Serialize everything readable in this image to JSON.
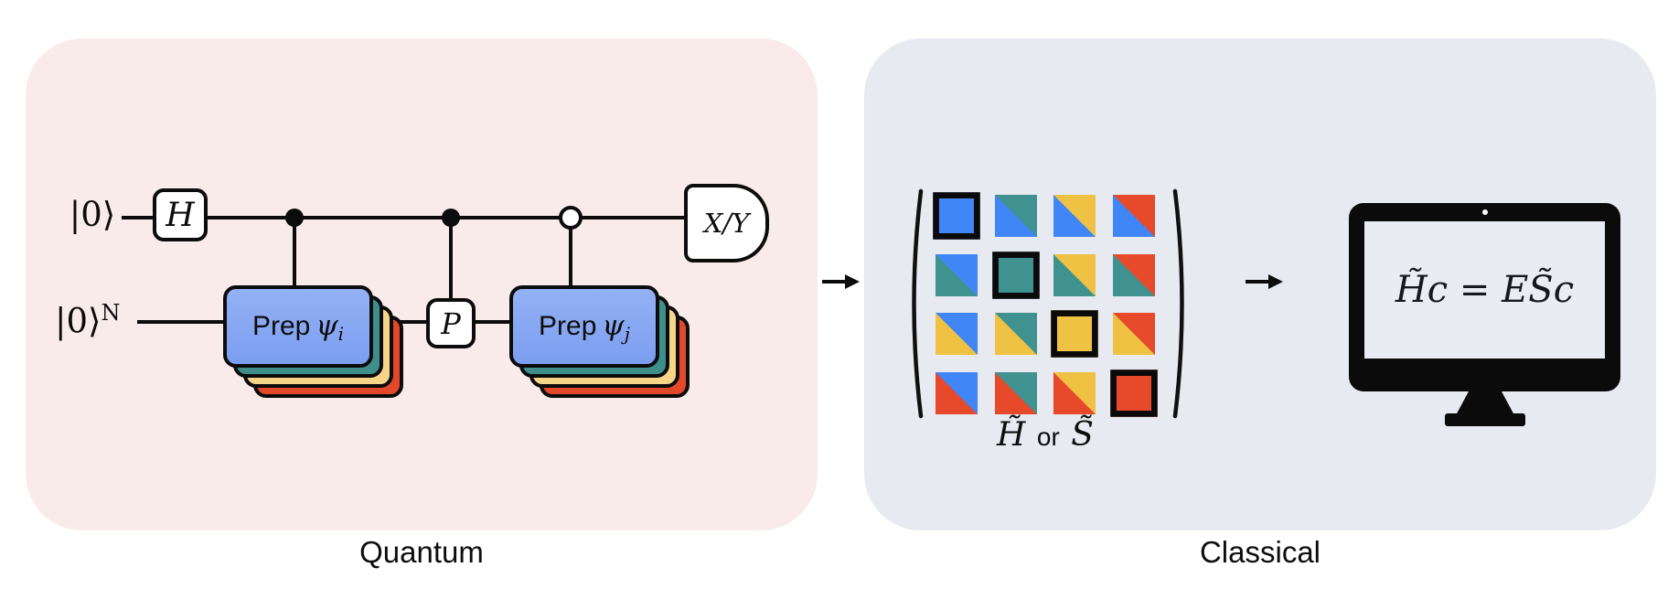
{
  "panels": {
    "quantum": {
      "label": "Quantum",
      "bg": "#f9ebea"
    },
    "classical": {
      "label": "Classical",
      "bg": "#e7eaf1"
    }
  },
  "circuit": {
    "ket_top": "|0⟩",
    "ket_bottom": "|0⟩",
    "ket_bottom_sup": "N",
    "gates": {
      "hadamard": "H",
      "phase": "P",
      "measurement": "X/Y"
    },
    "prep_i": {
      "prefix": "Prep",
      "psi": "ψ",
      "sub": "i"
    },
    "prep_j": {
      "prefix": "Prep",
      "psi": "ψ",
      "sub": "j"
    },
    "stack_colors": {
      "front_top": "#93b1f4",
      "front_bottom": "#7c9ef0",
      "teal": "#3e8e8c",
      "yellow": "#f6d488",
      "red": "#e2492b"
    }
  },
  "matrix": {
    "size": 4,
    "palette": {
      "blue": "#4086f6",
      "teal": "#3f9290",
      "yellow": "#efc243",
      "red": "#e7492b"
    },
    "row_colors": [
      "blue",
      "teal",
      "yellow",
      "red"
    ],
    "rule": "diagonal cells solid with black border; off-diagonal cell (i,j) split along main diagonal: lower-left = row color, upper-right = column color",
    "label_h": "H̃",
    "label_or": "or",
    "label_s": "S̃"
  },
  "monitor": {
    "equation": "H̃c = ES̃c"
  },
  "line_color": "#0c0c0c"
}
